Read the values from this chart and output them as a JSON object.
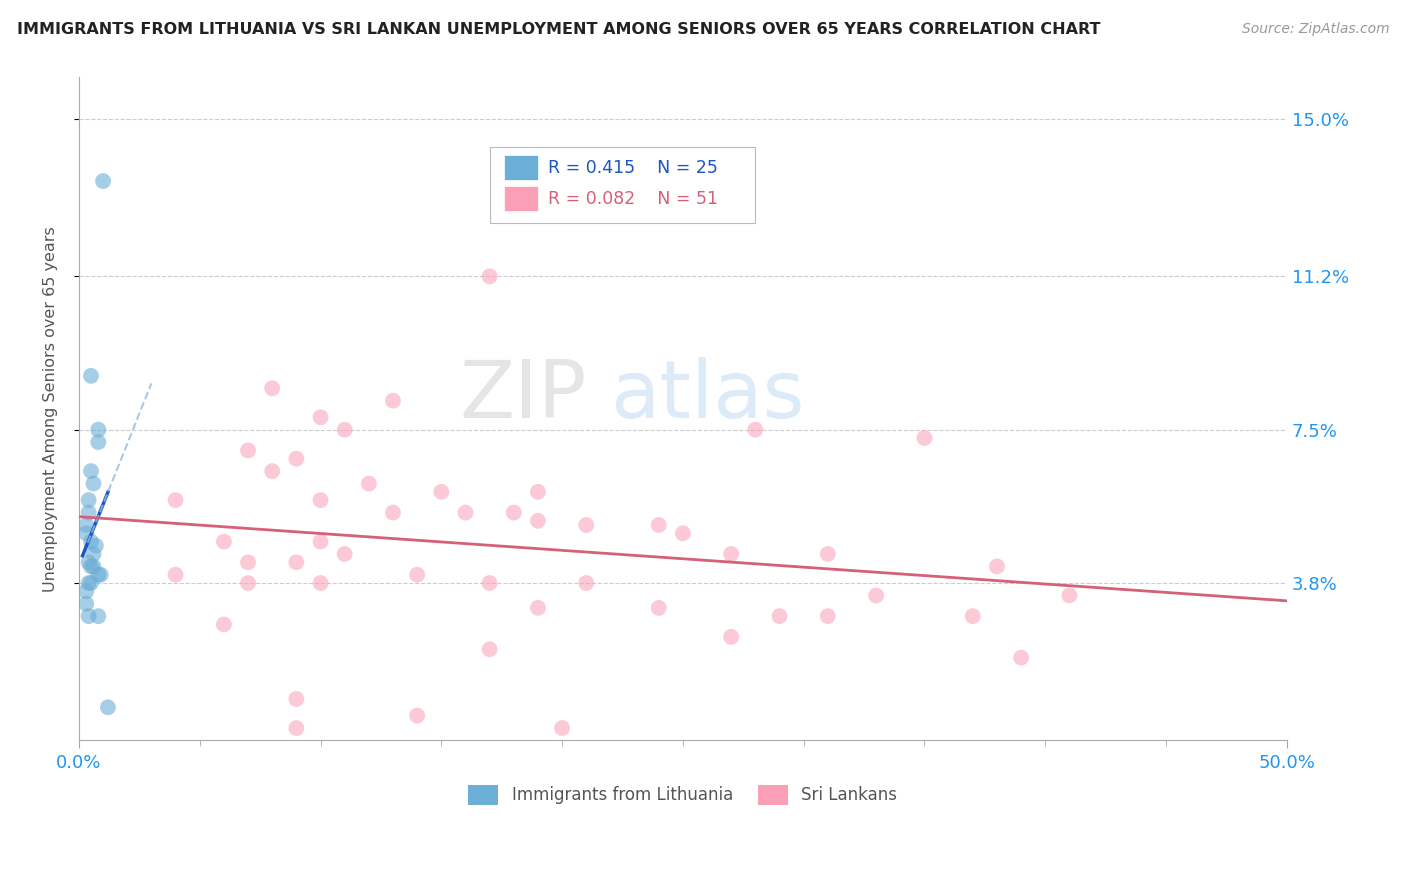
{
  "title": "IMMIGRANTS FROM LITHUANIA VS SRI LANKAN UNEMPLOYMENT AMONG SENIORS OVER 65 YEARS CORRELATION CHART",
  "source": "Source: ZipAtlas.com",
  "ylabel": "Unemployment Among Seniors over 65 years",
  "xlim": [
    0.0,
    0.5
  ],
  "ylim": [
    0.0,
    0.16
  ],
  "ytick_labels": [
    "3.8%",
    "7.5%",
    "11.2%",
    "15.0%"
  ],
  "ytick_values": [
    0.038,
    0.075,
    0.112,
    0.15
  ],
  "legend_r1": "R = 0.415",
  "legend_n1": "N = 25",
  "legend_r2": "R = 0.082",
  "legend_n2": "N = 51",
  "color_blue": "#6baed6",
  "color_pink": "#fa9fb5",
  "trendline_blue": "#1a56c4",
  "trendline_pink": "#d4607a",
  "trendline_dashed_blue": "#92bce0",
  "watermark_zip": "ZIP",
  "watermark_atlas": "atlas",
  "blue_points": [
    [
      0.01,
      0.135
    ],
    [
      0.005,
      0.088
    ],
    [
      0.008,
      0.075
    ],
    [
      0.008,
      0.072
    ],
    [
      0.005,
      0.065
    ],
    [
      0.006,
      0.062
    ],
    [
      0.004,
      0.058
    ],
    [
      0.004,
      0.055
    ],
    [
      0.003,
      0.052
    ],
    [
      0.003,
      0.05
    ],
    [
      0.005,
      0.048
    ],
    [
      0.007,
      0.047
    ],
    [
      0.006,
      0.045
    ],
    [
      0.004,
      0.043
    ],
    [
      0.005,
      0.042
    ],
    [
      0.006,
      0.042
    ],
    [
      0.008,
      0.04
    ],
    [
      0.009,
      0.04
    ],
    [
      0.005,
      0.038
    ],
    [
      0.004,
      0.038
    ],
    [
      0.003,
      0.036
    ],
    [
      0.003,
      0.033
    ],
    [
      0.004,
      0.03
    ],
    [
      0.008,
      0.03
    ],
    [
      0.012,
      0.008
    ]
  ],
  "pink_points": [
    [
      0.17,
      0.112
    ],
    [
      0.08,
      0.085
    ],
    [
      0.13,
      0.082
    ],
    [
      0.1,
      0.078
    ],
    [
      0.11,
      0.075
    ],
    [
      0.28,
      0.075
    ],
    [
      0.35,
      0.073
    ],
    [
      0.07,
      0.07
    ],
    [
      0.09,
      0.068
    ],
    [
      0.08,
      0.065
    ],
    [
      0.12,
      0.062
    ],
    [
      0.15,
      0.06
    ],
    [
      0.19,
      0.06
    ],
    [
      0.04,
      0.058
    ],
    [
      0.1,
      0.058
    ],
    [
      0.13,
      0.055
    ],
    [
      0.16,
      0.055
    ],
    [
      0.18,
      0.055
    ],
    [
      0.19,
      0.053
    ],
    [
      0.21,
      0.052
    ],
    [
      0.24,
      0.052
    ],
    [
      0.25,
      0.05
    ],
    [
      0.06,
      0.048
    ],
    [
      0.1,
      0.048
    ],
    [
      0.11,
      0.045
    ],
    [
      0.27,
      0.045
    ],
    [
      0.31,
      0.045
    ],
    [
      0.07,
      0.043
    ],
    [
      0.09,
      0.043
    ],
    [
      0.14,
      0.04
    ],
    [
      0.38,
      0.042
    ],
    [
      0.04,
      0.04
    ],
    [
      0.07,
      0.038
    ],
    [
      0.1,
      0.038
    ],
    [
      0.17,
      0.038
    ],
    [
      0.21,
      0.038
    ],
    [
      0.33,
      0.035
    ],
    [
      0.41,
      0.035
    ],
    [
      0.19,
      0.032
    ],
    [
      0.24,
      0.032
    ],
    [
      0.29,
      0.03
    ],
    [
      0.31,
      0.03
    ],
    [
      0.37,
      0.03
    ],
    [
      0.06,
      0.028
    ],
    [
      0.27,
      0.025
    ],
    [
      0.17,
      0.022
    ],
    [
      0.39,
      0.02
    ],
    [
      0.09,
      0.01
    ],
    [
      0.14,
      0.006
    ],
    [
      0.2,
      0.003
    ],
    [
      0.09,
      0.003
    ]
  ]
}
